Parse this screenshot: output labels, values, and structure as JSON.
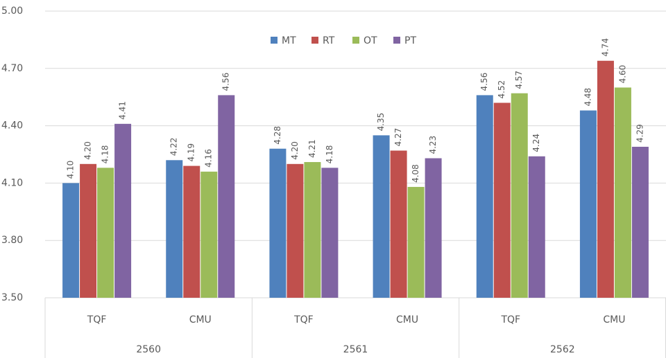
{
  "chart_data": {
    "type": "bar",
    "categories": [
      "TQF",
      "CMU",
      "TQF",
      "CMU",
      "TQF",
      "CMU"
    ],
    "groups": [
      "2560",
      "2561",
      "2562"
    ],
    "series": [
      {
        "name": "MT",
        "color": "#4f81bd",
        "values": [
          4.1,
          4.22,
          4.28,
          4.35,
          4.56,
          4.48
        ],
        "value_labels": [
          "4.10",
          "4.22",
          "4.28",
          "4.35",
          "4.56",
          "4.48"
        ]
      },
      {
        "name": "RT",
        "color": "#c0504d",
        "values": [
          4.2,
          4.19,
          4.2,
          4.27,
          4.52,
          4.74
        ],
        "value_labels": [
          "4.20",
          "4.19",
          "4.20",
          "4.27",
          "4.52",
          "4.74"
        ]
      },
      {
        "name": "OT",
        "color": "#9bbb59",
        "values": [
          4.18,
          4.16,
          4.21,
          4.08,
          4.57,
          4.6
        ],
        "value_labels": [
          "4.18",
          "4.16",
          "4.21",
          "4.08",
          "4.57",
          "4.60"
        ]
      },
      {
        "name": "PT",
        "color": "#8064a2",
        "values": [
          4.41,
          4.56,
          4.18,
          4.23,
          4.24,
          4.29
        ],
        "value_labels": [
          "4.41",
          "4.56",
          "4.18",
          "4.23",
          "4.24",
          "4.29"
        ]
      }
    ],
    "ylim": [
      3.5,
      5.0
    ],
    "yticks": [
      {
        "value": 3.5,
        "label": "3.50"
      },
      {
        "value": 3.8,
        "label": "3.80"
      },
      {
        "value": 4.1,
        "label": "4.10"
      },
      {
        "value": 4.4,
        "label": "4.40"
      },
      {
        "value": 4.7,
        "label": "4.70"
      },
      {
        "value": 5.0,
        "label": "5.00"
      }
    ],
    "grid": true,
    "legend": "top"
  }
}
